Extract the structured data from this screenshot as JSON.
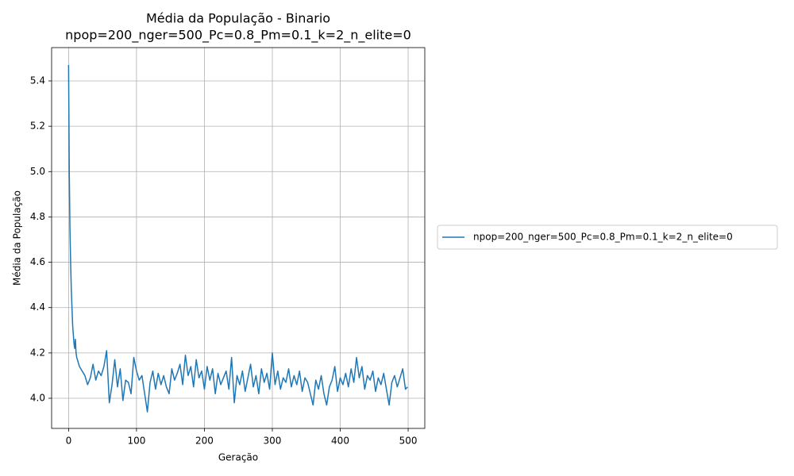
{
  "chart_data": {
    "type": "line",
    "title": "Média da População - Binario",
    "subtitle": "npop=200_nger=500_Pc=0.8_Pm=0.1_k=2_n_elite=0",
    "xlabel": "Geração",
    "ylabel": "Média da População",
    "x": [
      0,
      1,
      2,
      3,
      4,
      5,
      6,
      7,
      8,
      9,
      10,
      11,
      12,
      16,
      20,
      24,
      28,
      32,
      36,
      40,
      44,
      48,
      52,
      56,
      60,
      64,
      68,
      72,
      76,
      80,
      84,
      88,
      92,
      96,
      100,
      104,
      108,
      112,
      116,
      120,
      124,
      128,
      132,
      136,
      140,
      144,
      148,
      152,
      156,
      160,
      164,
      168,
      172,
      176,
      180,
      184,
      188,
      192,
      196,
      200,
      204,
      208,
      212,
      216,
      220,
      224,
      228,
      232,
      236,
      240,
      244,
      248,
      252,
      256,
      260,
      264,
      268,
      272,
      276,
      280,
      284,
      288,
      292,
      296,
      300,
      304,
      308,
      312,
      316,
      320,
      324,
      328,
      332,
      336,
      340,
      344,
      348,
      352,
      356,
      360,
      364,
      368,
      372,
      376,
      380,
      384,
      388,
      392,
      396,
      400,
      404,
      408,
      412,
      416,
      420,
      424,
      428,
      432,
      436,
      440,
      444,
      448,
      452,
      456,
      460,
      464,
      468,
      472,
      476,
      480,
      484,
      488,
      492,
      496,
      499
    ],
    "series": [
      {
        "name": "npop=200_nger=500_Pc=0.8_Pm=0.1_k=2_n_elite=0",
        "color": "#1f77b4",
        "values": [
          5.47,
          5.0,
          4.75,
          4.6,
          4.48,
          4.4,
          4.32,
          4.28,
          4.24,
          4.22,
          4.26,
          4.2,
          4.18,
          4.14,
          4.12,
          4.1,
          4.06,
          4.09,
          4.15,
          4.08,
          4.12,
          4.1,
          4.14,
          4.21,
          3.98,
          4.06,
          4.17,
          4.05,
          4.13,
          3.99,
          4.08,
          4.07,
          4.02,
          4.18,
          4.12,
          4.08,
          4.1,
          4.02,
          3.94,
          4.07,
          4.12,
          4.04,
          4.11,
          4.06,
          4.1,
          4.05,
          4.02,
          4.13,
          4.08,
          4.11,
          4.15,
          4.06,
          4.19,
          4.1,
          4.14,
          4.05,
          4.17,
          4.09,
          4.12,
          4.04,
          4.14,
          4.08,
          4.13,
          4.02,
          4.11,
          4.06,
          4.09,
          4.12,
          4.04,
          4.18,
          3.98,
          4.1,
          4.06,
          4.12,
          4.03,
          4.09,
          4.15,
          4.05,
          4.1,
          4.02,
          4.13,
          4.07,
          4.11,
          4.04,
          4.2,
          4.06,
          4.12,
          4.04,
          4.09,
          4.07,
          4.13,
          4.05,
          4.1,
          4.06,
          4.12,
          4.03,
          4.09,
          4.07,
          4.02,
          3.97,
          4.08,
          4.04,
          4.1,
          4.02,
          3.97,
          4.05,
          4.08,
          4.14,
          4.03,
          4.09,
          4.06,
          4.11,
          4.05,
          4.13,
          4.07,
          4.18,
          4.09,
          4.14,
          4.04,
          4.1,
          4.08,
          4.12,
          4.03,
          4.09,
          4.06,
          4.11,
          4.04,
          3.97,
          4.07,
          4.1,
          4.05,
          4.09,
          4.13,
          4.04,
          4.05
        ]
      }
    ],
    "xlim": [
      -25,
      524.5
    ],
    "ylim": [
      3.867,
      5.547
    ],
    "xticks": [
      0,
      100,
      200,
      300,
      400,
      500
    ],
    "yticks": [
      {
        "value": 4,
        "label": "4.0"
      },
      4.2,
      4.4,
      4.6,
      4.8,
      {
        "value": 5,
        "label": "5.0"
      },
      5.2,
      5.4
    ],
    "grid": true,
    "legend": "right"
  }
}
